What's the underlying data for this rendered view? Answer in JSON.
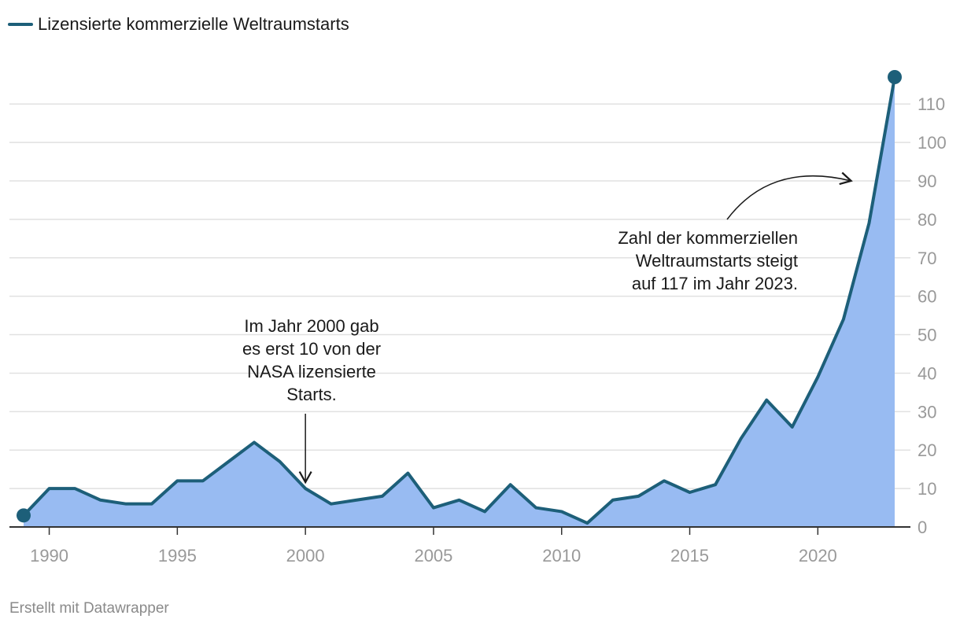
{
  "chart_data": {
    "type": "area",
    "legend": {
      "label": "Lizensierte kommerzielle Weltraumstarts",
      "placement": "top-left"
    },
    "x": [
      1989,
      1990,
      1991,
      1992,
      1993,
      1994,
      1995,
      1996,
      1997,
      1998,
      1999,
      2000,
      2001,
      2002,
      2003,
      2004,
      2005,
      2006,
      2007,
      2008,
      2009,
      2010,
      2011,
      2012,
      2013,
      2014,
      2015,
      2016,
      2017,
      2018,
      2019,
      2020,
      2021,
      2022,
      2023
    ],
    "series": [
      {
        "name": "Lizensierte kommerzielle Weltraumstarts",
        "values": [
          3,
          10,
          10,
          7,
          6,
          6,
          12,
          12,
          17,
          22,
          17,
          10,
          6,
          7,
          8,
          14,
          5,
          7,
          4,
          11,
          5,
          4,
          1,
          7,
          8,
          12,
          9,
          11,
          23,
          33,
          26,
          39,
          54,
          79,
          117
        ]
      }
    ],
    "x_ticks": [
      1990,
      1995,
      2000,
      2005,
      2010,
      2015,
      2020
    ],
    "y_ticks": [
      0,
      10,
      20,
      30,
      40,
      50,
      60,
      70,
      80,
      90,
      100,
      110
    ],
    "xlim": [
      1989,
      2023
    ],
    "ylim": [
      0,
      117
    ],
    "y_axis_position": "right",
    "grid": true,
    "annotations": [
      {
        "name": "annotation-2000",
        "lines": [
          "Im Jahr 2000 gab",
          "es erst 10 von der",
          "NASA lizensierte",
          "Starts."
        ],
        "target": {
          "x": 2000,
          "y": 10
        }
      },
      {
        "name": "annotation-2023",
        "lines": [
          "Zahl der kommerziellen",
          "Weltraumstarts steigt",
          "auf 117 im Jahr 2023."
        ],
        "target": {
          "x": 2021.3,
          "y": 90
        }
      }
    ],
    "colors": {
      "line": "#1d5f79",
      "area": "#98bbf2",
      "grid": "#e1e1e1",
      "axis": "#333333",
      "tick_text": "#999999",
      "text": "#1a1a1a",
      "footer": "#8a8a8a"
    }
  },
  "footer": {
    "credit": "Erstellt mit Datawrapper"
  }
}
